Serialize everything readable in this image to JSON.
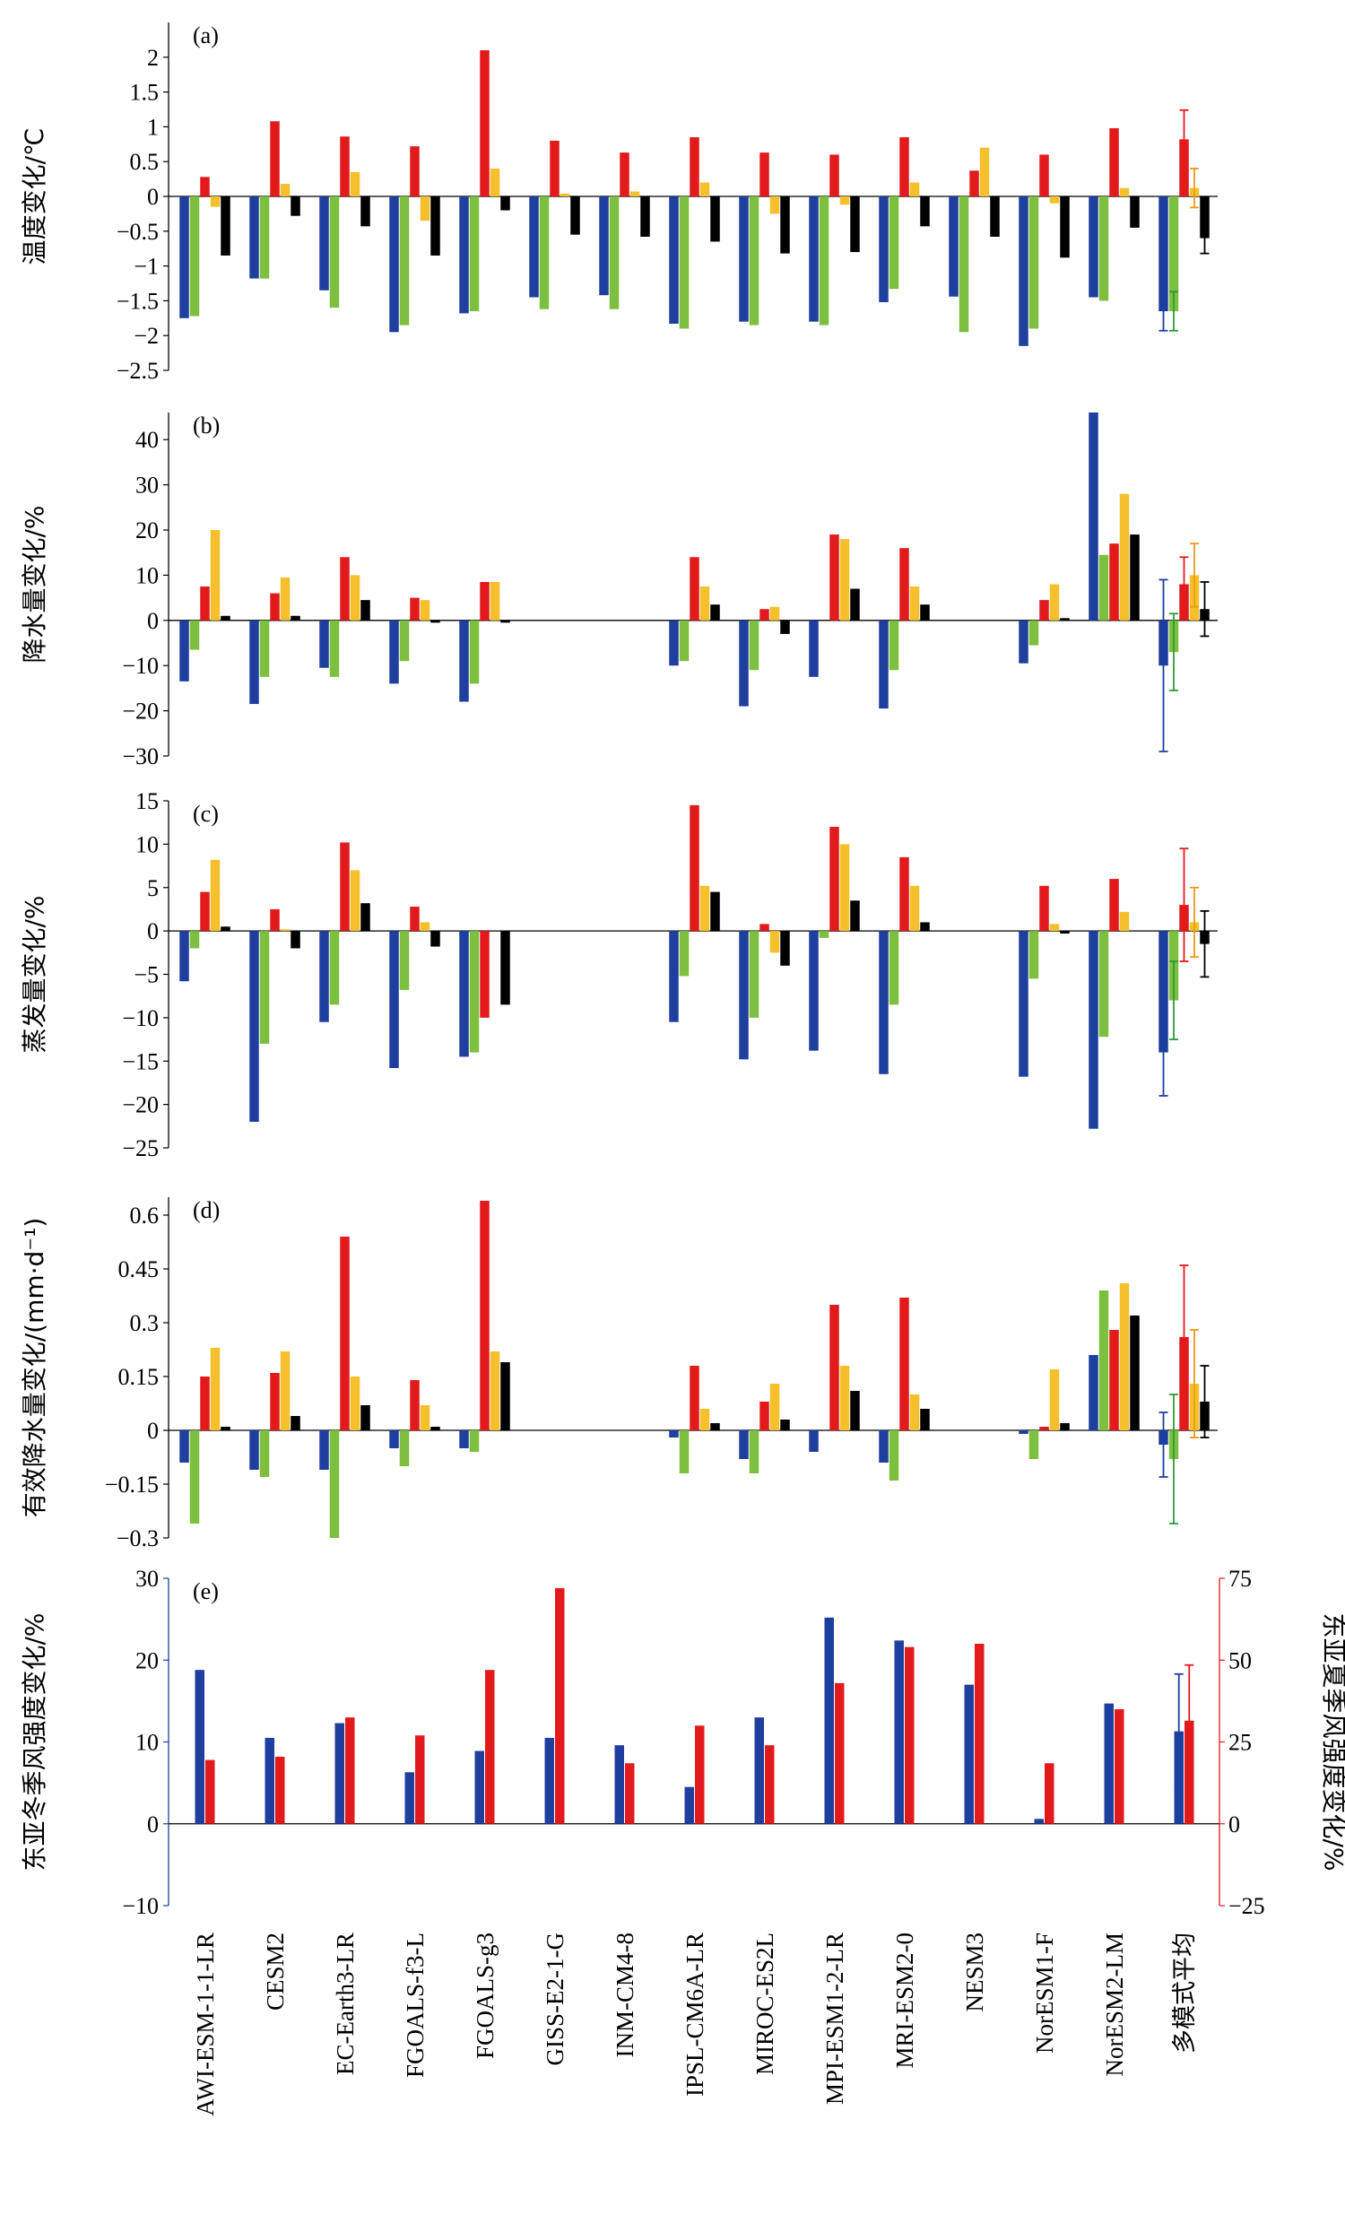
{
  "categories": [
    "AWI-ESM-1-1-LR",
    "CESM2",
    "EC-Earth3-LR",
    "FGOALS-f3-L",
    "FGOALS-g3",
    "GISS-E2-1-G",
    "INM-CM4-8",
    "IPSL-CM6A-LR",
    "MIROC-ES2L",
    "MPI-ESM1-2-LR",
    "MRI-ESM2-0",
    "NESM3",
    "NorESM1-F",
    "NorESM2-LM",
    "多模式平均"
  ],
  "colors": {
    "blue": "#1f3f9e",
    "green": "#7dbf3f",
    "red": "#e31a1c",
    "yellow": "#f5c02c",
    "black": "#000000",
    "axis_right": "#e31a1c",
    "axis_left": "#1f3f9e"
  },
  "chart_data": [
    {
      "type": "bar",
      "panel_label": "(a)",
      "ylabel": "温度变化/℃",
      "ylim": [
        -2.5,
        2.5
      ],
      "yticks": [
        2,
        1.5,
        1,
        0.5,
        0,
        -0.5,
        -1,
        -1.5,
        -2,
        -2.5
      ],
      "ytick_labels": [
        "2",
        "1.5",
        "1",
        "0.5",
        "0",
        "−0.5",
        "−1",
        "−1.5",
        "−2",
        "−2.5"
      ],
      "series_colors": [
        "blue",
        "green",
        "red",
        "yellow",
        "black"
      ],
      "series": [
        {
          "values": [
            -1.75,
            -1.18,
            -1.35,
            -1.95,
            -1.68,
            -1.45,
            -1.42,
            -1.83,
            -1.8,
            -1.8,
            -1.52,
            -1.44,
            -2.15,
            -1.45,
            -1.65
          ],
          "errors": [
            null,
            null,
            null,
            null,
            null,
            null,
            null,
            null,
            null,
            null,
            null,
            null,
            null,
            null,
            0.28
          ]
        },
        {
          "values": [
            -1.72,
            -1.18,
            -1.6,
            -1.85,
            -1.65,
            -1.62,
            -1.62,
            -1.9,
            -1.85,
            -1.85,
            -1.33,
            -1.95,
            -1.9,
            -1.5,
            -1.65
          ],
          "errors": [
            null,
            null,
            null,
            null,
            null,
            null,
            null,
            null,
            null,
            null,
            null,
            null,
            null,
            null,
            0.28
          ]
        },
        {
          "values": [
            0.28,
            1.08,
            0.86,
            0.72,
            2.1,
            0.8,
            0.63,
            0.85,
            0.63,
            0.6,
            0.85,
            0.37,
            0.6,
            0.98,
            0.82
          ],
          "errors": [
            null,
            null,
            null,
            null,
            null,
            null,
            null,
            null,
            null,
            null,
            null,
            null,
            null,
            null,
            0.42
          ]
        },
        {
          "values": [
            -0.15,
            0.18,
            0.35,
            -0.35,
            0.4,
            0.04,
            0.07,
            0.2,
            -0.25,
            -0.12,
            0.2,
            0.7,
            -0.1,
            0.12,
            0.12
          ],
          "errors": [
            null,
            null,
            null,
            null,
            null,
            null,
            null,
            null,
            null,
            null,
            null,
            null,
            null,
            null,
            0.28
          ]
        },
        {
          "values": [
            -0.85,
            -0.28,
            -0.43,
            -0.85,
            -0.2,
            -0.55,
            -0.58,
            -0.65,
            -0.82,
            -0.8,
            -0.43,
            -0.58,
            -0.88,
            -0.45,
            -0.6
          ],
          "errors": [
            null,
            null,
            null,
            null,
            null,
            null,
            null,
            null,
            null,
            null,
            null,
            null,
            null,
            null,
            0.22
          ]
        }
      ]
    },
    {
      "type": "bar",
      "panel_label": "(b)",
      "ylabel": "降水量变化/%",
      "ylim": [
        -30,
        46
      ],
      "yticks": [
        40,
        30,
        20,
        10,
        0,
        -10,
        -20,
        -30
      ],
      "ytick_labels": [
        "40",
        "30",
        "20",
        "10",
        "0",
        "−10",
        "−20",
        "−30"
      ],
      "series_colors": [
        "blue",
        "green",
        "red",
        "yellow",
        "black"
      ],
      "series": [
        {
          "values": [
            -13.5,
            -18.5,
            -10.5,
            -14,
            -18,
            null,
            null,
            -10,
            -19,
            -12.5,
            -19.5,
            null,
            -9.5,
            46,
            -10
          ],
          "errors": [
            null,
            null,
            null,
            null,
            null,
            null,
            null,
            null,
            null,
            null,
            null,
            null,
            null,
            null,
            19
          ]
        },
        {
          "values": [
            -6.5,
            -12.5,
            -12.5,
            -9,
            -14,
            null,
            null,
            -9,
            -11,
            null,
            -11,
            null,
            -5.5,
            14.5,
            -7
          ],
          "errors": [
            null,
            null,
            null,
            null,
            null,
            null,
            null,
            null,
            null,
            null,
            null,
            null,
            null,
            null,
            8.5
          ]
        },
        {
          "values": [
            7.5,
            6,
            14,
            5,
            8.5,
            null,
            null,
            14,
            2.5,
            19,
            16,
            null,
            4.5,
            17,
            8
          ],
          "errors": [
            null,
            null,
            null,
            null,
            null,
            null,
            null,
            null,
            null,
            null,
            null,
            null,
            null,
            null,
            6
          ]
        },
        {
          "values": [
            20,
            9.5,
            10,
            4.5,
            8.5,
            null,
            null,
            7.5,
            3,
            18,
            7.5,
            null,
            8,
            28,
            10
          ],
          "errors": [
            null,
            null,
            null,
            null,
            null,
            null,
            null,
            null,
            null,
            null,
            null,
            null,
            null,
            null,
            7
          ]
        },
        {
          "values": [
            1,
            1,
            4.5,
            -0.5,
            -0.5,
            null,
            null,
            3.5,
            -3,
            7,
            3.5,
            null,
            0.5,
            19,
            2.5
          ],
          "errors": [
            null,
            null,
            null,
            null,
            null,
            null,
            null,
            null,
            null,
            null,
            null,
            null,
            null,
            null,
            6
          ]
        }
      ]
    },
    {
      "type": "bar",
      "panel_label": "(c)",
      "ylabel": "蒸发量变化/%",
      "ylim": [
        -25,
        15
      ],
      "yticks": [
        15,
        10,
        5,
        0,
        -5,
        -10,
        -15,
        -20,
        -25
      ],
      "ytick_labels": [
        "15",
        "10",
        "5",
        "0",
        "−5",
        "−10",
        "−15",
        "−20",
        "−25"
      ],
      "series_colors": [
        "blue",
        "green",
        "red",
        "yellow",
        "black"
      ],
      "series": [
        {
          "values": [
            -5.8,
            -22,
            -10.5,
            -15.8,
            -14.5,
            null,
            null,
            -10.5,
            -14.8,
            -13.8,
            -16.5,
            null,
            -16.8,
            -22.8,
            -14
          ],
          "errors": [
            null,
            null,
            null,
            null,
            null,
            null,
            null,
            null,
            null,
            null,
            null,
            null,
            null,
            null,
            5
          ]
        },
        {
          "values": [
            -2,
            -13,
            -8.5,
            -6.8,
            -14,
            null,
            null,
            -5.2,
            -10,
            -0.8,
            -8.5,
            null,
            -5.5,
            -12.2,
            -8
          ],
          "errors": [
            null,
            null,
            null,
            null,
            null,
            null,
            null,
            null,
            null,
            null,
            null,
            null,
            null,
            null,
            4.5
          ]
        },
        {
          "values": [
            4.5,
            2.5,
            10.2,
            2.8,
            -10,
            null,
            null,
            14.5,
            0.8,
            12,
            8.5,
            null,
            5.2,
            6,
            3
          ],
          "errors": [
            null,
            null,
            null,
            null,
            null,
            null,
            null,
            null,
            null,
            null,
            null,
            null,
            null,
            null,
            6.5
          ]
        },
        {
          "values": [
            8.2,
            0.2,
            7,
            1,
            null,
            null,
            null,
            5.2,
            -2.5,
            10,
            5.2,
            null,
            0.8,
            2.2,
            1
          ],
          "errors": [
            null,
            null,
            null,
            null,
            null,
            null,
            null,
            null,
            null,
            null,
            null,
            null,
            null,
            null,
            4
          ]
        },
        {
          "values": [
            0.5,
            -2,
            3.2,
            -1.8,
            -8.5,
            null,
            null,
            4.5,
            -4,
            3.5,
            1,
            null,
            -0.3,
            null,
            -1.5
          ],
          "errors": [
            null,
            null,
            null,
            null,
            null,
            null,
            null,
            null,
            null,
            null,
            null,
            null,
            null,
            null,
            3.8
          ]
        }
      ]
    },
    {
      "type": "bar",
      "panel_label": "(d)",
      "ylabel": "有效降水量变化/(mm·d⁻¹)",
      "ylim": [
        -0.3,
        0.65
      ],
      "yticks": [
        0.6,
        0.45,
        0.3,
        0.15,
        0,
        -0.15,
        -0.3
      ],
      "ytick_labels": [
        "0.6",
        "0.45",
        "0.3",
        "0.15",
        "0",
        "−0.15",
        "−0.3"
      ],
      "series_colors": [
        "blue",
        "green",
        "red",
        "yellow",
        "black"
      ],
      "series": [
        {
          "values": [
            -0.09,
            -0.11,
            -0.11,
            -0.05,
            -0.05,
            null,
            null,
            -0.02,
            -0.08,
            -0.06,
            -0.09,
            null,
            -0.01,
            0.21,
            -0.04
          ],
          "errors": [
            null,
            null,
            null,
            null,
            null,
            null,
            null,
            null,
            null,
            null,
            null,
            null,
            null,
            null,
            0.09
          ]
        },
        {
          "values": [
            -0.26,
            -0.13,
            -0.3,
            -0.1,
            -0.06,
            null,
            null,
            -0.12,
            -0.12,
            null,
            -0.14,
            null,
            -0.08,
            0.39,
            -0.08
          ],
          "errors": [
            null,
            null,
            null,
            null,
            null,
            null,
            null,
            null,
            null,
            null,
            null,
            null,
            null,
            null,
            0.18
          ]
        },
        {
          "values": [
            0.15,
            0.16,
            0.54,
            0.14,
            0.64,
            null,
            null,
            0.18,
            0.08,
            0.35,
            0.37,
            null,
            0.01,
            0.28,
            0.26
          ],
          "errors": [
            null,
            null,
            null,
            null,
            null,
            null,
            null,
            null,
            null,
            null,
            null,
            null,
            null,
            null,
            0.2
          ]
        },
        {
          "values": [
            0.23,
            0.22,
            0.15,
            0.07,
            0.22,
            null,
            null,
            0.06,
            0.13,
            0.18,
            0.1,
            null,
            0.17,
            0.41,
            0.13
          ],
          "errors": [
            null,
            null,
            null,
            null,
            null,
            null,
            null,
            null,
            null,
            null,
            null,
            null,
            null,
            null,
            0.15
          ]
        },
        {
          "values": [
            0.01,
            0.04,
            0.07,
            0.01,
            0.19,
            null,
            null,
            0.02,
            0.03,
            0.11,
            0.06,
            null,
            0.02,
            0.32,
            0.08
          ],
          "errors": [
            null,
            null,
            null,
            null,
            null,
            null,
            null,
            null,
            null,
            null,
            null,
            null,
            null,
            null,
            0.1
          ]
        }
      ]
    },
    {
      "type": "bar",
      "panel_label": "(e)",
      "ylabel": "东亚冬季风强度变化/%",
      "ylabel_right": "东亚夏季风强度变化/%",
      "ylim": [
        -10,
        30
      ],
      "ylim_right": [
        -25,
        75
      ],
      "yticks": [
        30,
        20,
        10,
        0,
        -10
      ],
      "ytick_labels": [
        "30",
        "20",
        "10",
        "0",
        "−10"
      ],
      "yticks_right": [
        75,
        50,
        25,
        0,
        -25
      ],
      "ytick_labels_right": [
        "75",
        "50",
        "25",
        "0",
        "−25"
      ],
      "series_colors": [
        "blue",
        "red"
      ],
      "series": [
        {
          "axis": "left",
          "values": [
            18.8,
            10.5,
            12.3,
            6.3,
            8.9,
            10.5,
            9.6,
            4.5,
            13,
            25.2,
            22.4,
            17,
            0.6,
            14.7,
            11.3
          ],
          "errors": [
            null,
            null,
            null,
            null,
            null,
            null,
            null,
            null,
            null,
            null,
            null,
            null,
            null,
            null,
            7
          ]
        },
        {
          "axis": "right",
          "values": [
            19.5,
            20.5,
            32.5,
            27,
            47,
            72,
            18.5,
            30,
            24,
            43,
            54,
            55,
            18.5,
            35,
            31.5
          ],
          "errors": [
            null,
            null,
            null,
            null,
            null,
            null,
            null,
            null,
            null,
            null,
            null,
            null,
            null,
            null,
            17
          ]
        }
      ]
    }
  ]
}
